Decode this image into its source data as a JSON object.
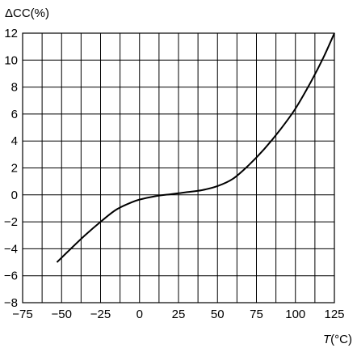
{
  "chart_data": {
    "type": "line",
    "ylabel": "ΔCC(%)",
    "xlabel_var": "T",
    "xlabel_unit": "(°C)",
    "xlim": [
      -75,
      125
    ],
    "ylim": [
      -8,
      12
    ],
    "xticks": [
      -75,
      -50,
      -25,
      0,
      25,
      50,
      75,
      100,
      125
    ],
    "xtick_labels": [
      "−75",
      "−50",
      "−25",
      "0",
      "25",
      "50",
      "75",
      "100",
      "125"
    ],
    "yticks": [
      -8,
      -6,
      -4,
      -2,
      0,
      2,
      4,
      6,
      8,
      10,
      12
    ],
    "ytick_labels": [
      "−8",
      "−6",
      "−4",
      "−2",
      "0",
      "2",
      "4",
      "6",
      "8",
      "10",
      "12"
    ],
    "grid": true,
    "x_minor_grid_step": 12.5,
    "series": [
      {
        "x": [
          -53,
          -45,
          -35,
          -25,
          -15,
          -5,
          0,
          10,
          20,
          25,
          30,
          40,
          50,
          60,
          70,
          80,
          90,
          100,
          110,
          118,
          125
        ],
        "y": [
          -5.0,
          -4.1,
          -3.0,
          -2.0,
          -1.1,
          -0.55,
          -0.35,
          -0.1,
          0.05,
          0.12,
          0.2,
          0.35,
          0.65,
          1.2,
          2.2,
          3.4,
          4.8,
          6.4,
          8.4,
          10.2,
          12.0
        ]
      }
    ]
  }
}
